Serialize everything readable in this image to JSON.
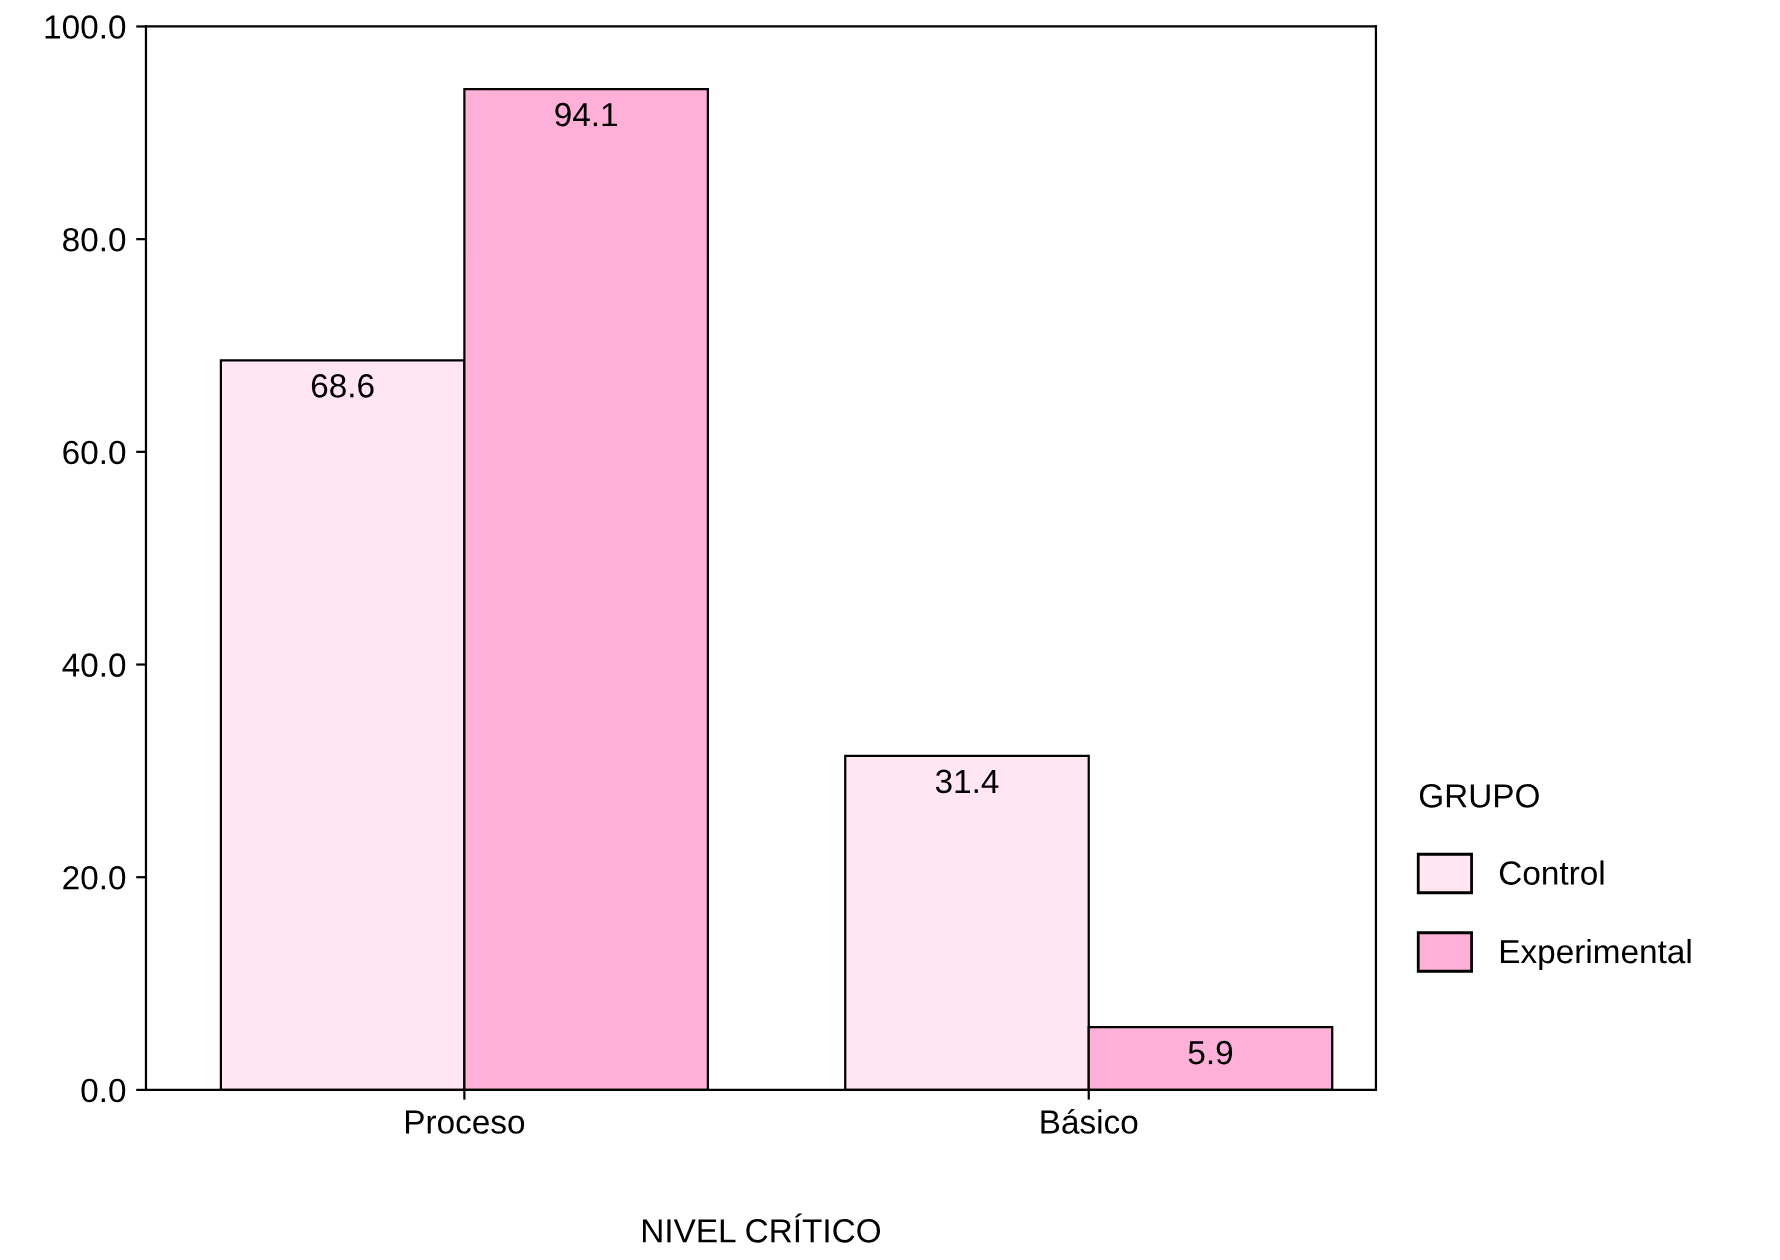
{
  "chart_data": {
    "type": "bar",
    "xlabel": "NIVEL CRÍTICO",
    "categories": [
      "Proceso",
      "Básico"
    ],
    "series": [
      {
        "name": "Control",
        "color": "#ffe6f2",
        "values": [
          68.6,
          31.4
        ]
      },
      {
        "name": "Experimental",
        "color": "#ffb0d8",
        "values": [
          94.1,
          5.9
        ]
      }
    ],
    "legend_title": "GRUPO",
    "legend": "right",
    "ylim": [
      0,
      100
    ],
    "yticks": [
      {
        "value": 0,
        "label": "0.0"
      },
      {
        "value": 20,
        "label": "20.0"
      },
      {
        "value": 40,
        "label": "40.0"
      },
      {
        "value": 60,
        "label": "60.0"
      },
      {
        "value": 80,
        "label": "80.0"
      },
      {
        "value": 100,
        "label": "100.0"
      }
    ],
    "data_labels": true,
    "grid": false
  }
}
